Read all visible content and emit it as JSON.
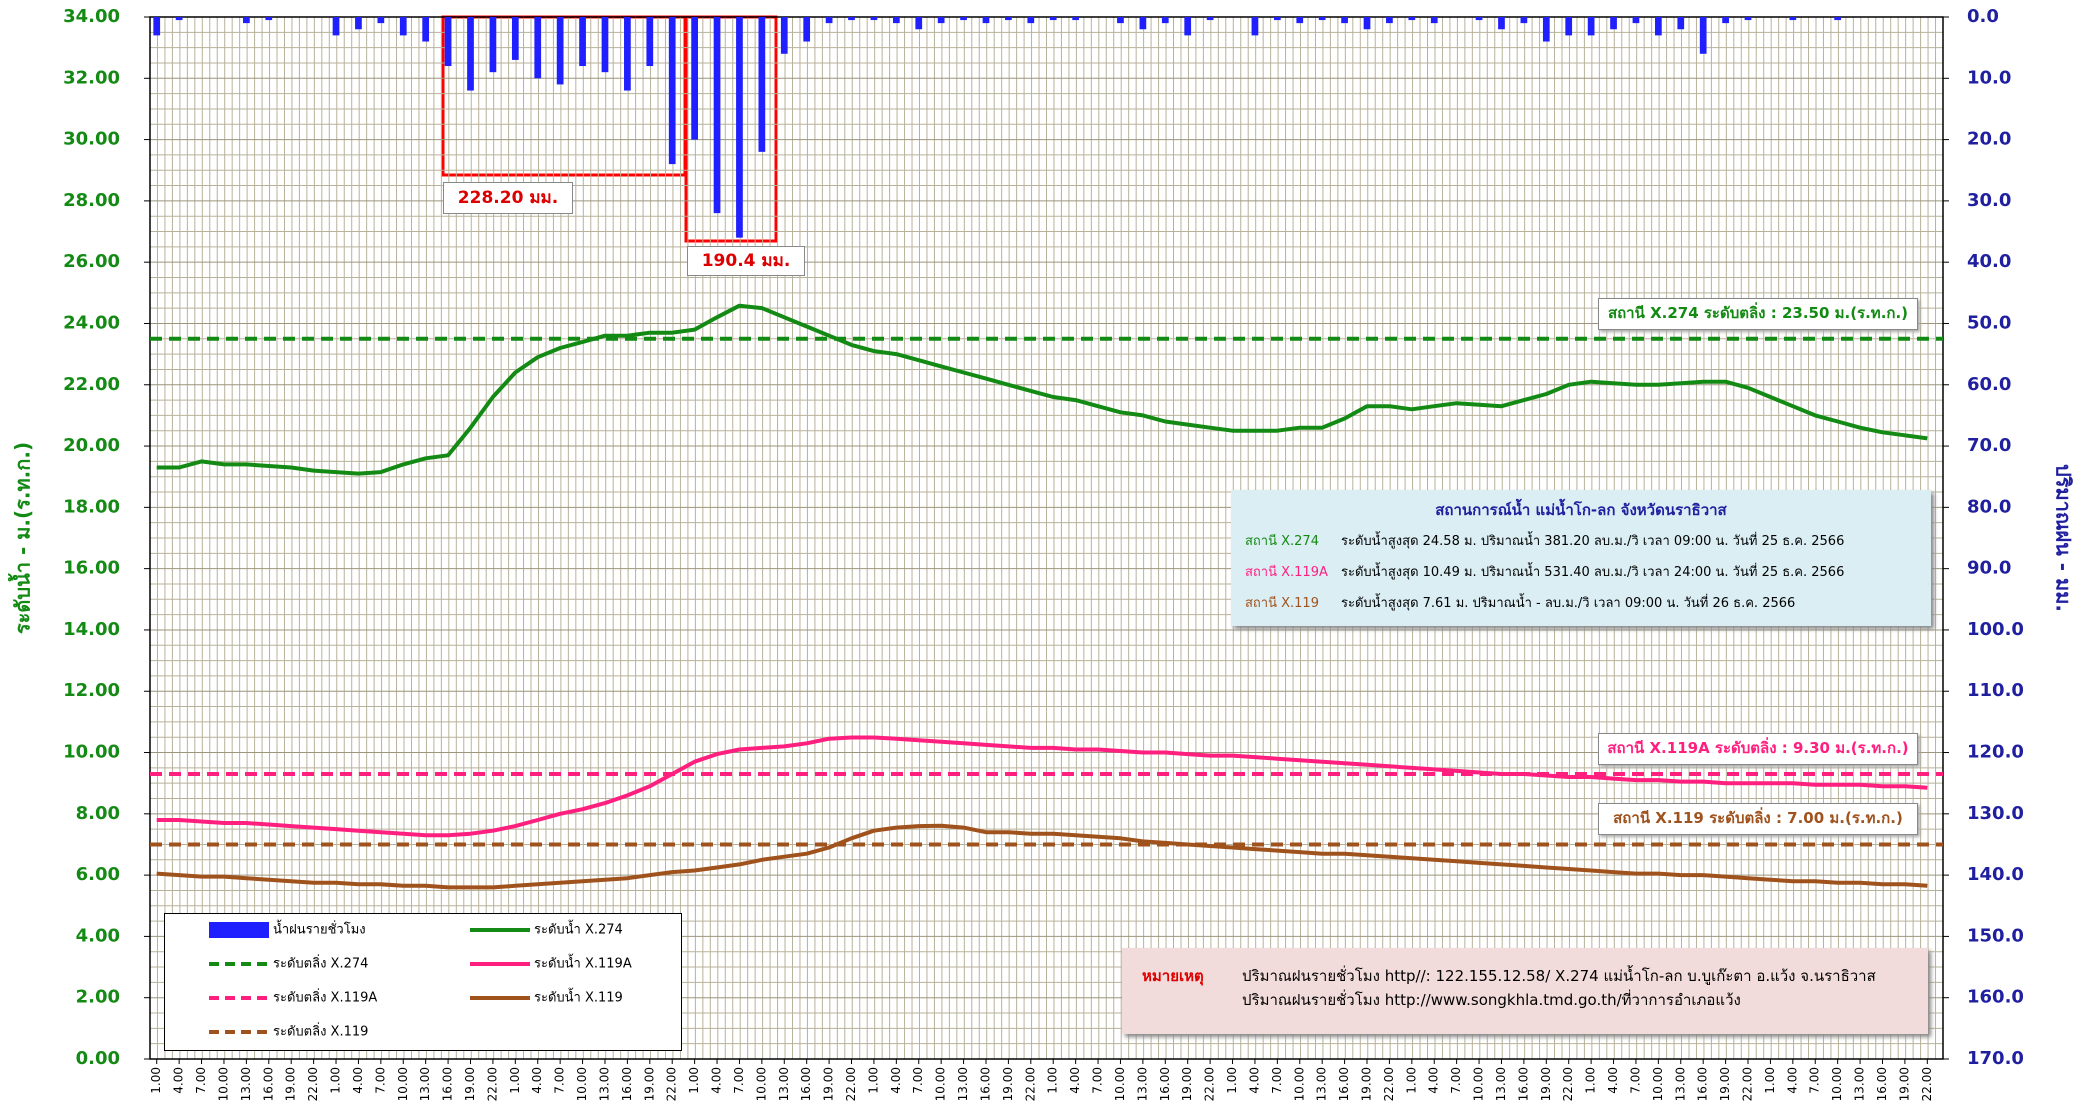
{
  "chart_data": {
    "type": "bar-line",
    "y_label": "ระดับน้ำ  -  ม.(ร.ท.ก.)",
    "y2_label": "ปริมาณฝน - มม.",
    "categories": [
      "1.00",
      "4.00",
      "7.00",
      "10.00",
      "13.00",
      "16.00",
      "19.00",
      "22.00",
      "1.00",
      "4.00",
      "7.00",
      "10.00",
      "13.00",
      "16.00",
      "19.00",
      "22.00",
      "1.00",
      "4.00",
      "7.00",
      "10.00",
      "13.00",
      "16.00",
      "19.00",
      "22.00",
      "1.00",
      "4.00",
      "7.00",
      "10.00",
      "13.00",
      "16.00",
      "19.00",
      "22.00",
      "1.00",
      "4.00",
      "7.00",
      "10.00",
      "13.00",
      "16.00",
      "19.00",
      "22.00",
      "1.00",
      "4.00",
      "7.00",
      "10.00",
      "13.00",
      "16.00",
      "19.00",
      "22.00",
      "1.00",
      "4.00",
      "7.00",
      "10.00",
      "13.00",
      "16.00",
      "19.00",
      "22.00",
      "1.00",
      "4.00",
      "7.00",
      "10.00",
      "13.00",
      "16.00",
      "19.00",
      "22.00",
      "1.00",
      "4.00",
      "7.00",
      "10.00",
      "13.00",
      "16.00",
      "19.00",
      "22.00",
      "1.00",
      "4.00",
      "7.00",
      "10.00",
      "13.00",
      "16.00",
      "19.00",
      "22.00"
    ],
    "series": [
      {
        "name": "น้ำฝนรายชั่วโมง",
        "type": "bar",
        "axis": "y2",
        "color": "#1f1fff",
        "values": [
          3,
          0.5,
          0,
          0,
          1,
          0.5,
          0,
          0,
          3,
          2,
          1,
          3,
          4,
          8,
          12,
          9,
          7,
          10,
          11,
          8,
          9,
          12,
          8,
          24,
          20,
          32,
          36,
          22,
          6,
          4,
          1,
          0.5,
          0.5,
          1,
          2,
          1,
          0.5,
          1,
          0.5,
          1,
          0.5,
          0.5,
          0,
          1,
          2,
          1,
          3,
          0.5,
          0,
          3,
          0.5,
          1,
          0.5,
          1,
          2,
          1,
          0.5,
          1,
          0,
          0.5,
          2,
          1,
          4,
          3,
          3,
          2,
          1,
          3,
          2,
          6,
          1,
          0.5,
          0,
          0.5,
          0,
          0.5,
          0,
          0,
          0,
          0
        ]
      },
      {
        "name": "ระดับน้ำ X.274",
        "type": "line",
        "color": "#138a13",
        "values": [
          19.3,
          19.3,
          19.5,
          19.4,
          19.4,
          19.35,
          19.3,
          19.2,
          19.15,
          19.1,
          19.15,
          19.4,
          19.6,
          19.7,
          20.6,
          21.6,
          22.4,
          22.9,
          23.2,
          23.4,
          23.6,
          23.6,
          23.7,
          23.7,
          23.8,
          24.2,
          24.58,
          24.5,
          24.2,
          23.9,
          23.6,
          23.3,
          23.1,
          23.0,
          22.8,
          22.6,
          22.4,
          22.2,
          22.0,
          21.8,
          21.6,
          21.5,
          21.3,
          21.1,
          21.0,
          20.8,
          20.7,
          20.6,
          20.5,
          20.5,
          20.5,
          20.6,
          20.6,
          20.9,
          21.3,
          21.3,
          21.2,
          21.3,
          21.4,
          21.35,
          21.3,
          21.5,
          21.7,
          22.0,
          22.1,
          22.05,
          22.0,
          22.0,
          22.05,
          22.1,
          22.1,
          21.9,
          21.6,
          21.3,
          21.0,
          20.8,
          20.6,
          20.45,
          20.35,
          20.25
        ]
      },
      {
        "name": "ระดับน้ำ X.119A",
        "type": "line",
        "color": "#ff1f7f",
        "values": [
          7.8,
          7.8,
          7.75,
          7.7,
          7.7,
          7.65,
          7.6,
          7.55,
          7.5,
          7.45,
          7.4,
          7.35,
          7.3,
          7.3,
          7.35,
          7.45,
          7.6,
          7.8,
          8.0,
          8.15,
          8.35,
          8.6,
          8.9,
          9.3,
          9.7,
          9.95,
          10.1,
          10.15,
          10.2,
          10.3,
          10.45,
          10.49,
          10.49,
          10.45,
          10.4,
          10.35,
          10.3,
          10.25,
          10.2,
          10.15,
          10.15,
          10.1,
          10.1,
          10.05,
          10.0,
          10.0,
          9.95,
          9.9,
          9.9,
          9.85,
          9.8,
          9.75,
          9.7,
          9.65,
          9.6,
          9.55,
          9.5,
          9.45,
          9.4,
          9.35,
          9.3,
          9.3,
          9.25,
          9.2,
          9.2,
          9.15,
          9.1,
          9.1,
          9.05,
          9.05,
          9.0,
          9.0,
          9.0,
          9.0,
          8.95,
          8.95,
          8.95,
          8.9,
          8.9,
          8.85
        ]
      },
      {
        "name": "ระดับน้ำ X.119",
        "type": "line",
        "color": "#a0521d",
        "values": [
          6.05,
          6.0,
          5.95,
          5.95,
          5.9,
          5.85,
          5.8,
          5.75,
          5.75,
          5.7,
          5.7,
          5.65,
          5.65,
          5.6,
          5.6,
          5.6,
          5.65,
          5.7,
          5.75,
          5.8,
          5.85,
          5.9,
          6.0,
          6.1,
          6.15,
          6.25,
          6.35,
          6.5,
          6.6,
          6.7,
          6.9,
          7.2,
          7.45,
          7.55,
          7.6,
          7.61,
          7.55,
          7.4,
          7.4,
          7.35,
          7.35,
          7.3,
          7.25,
          7.2,
          7.1,
          7.05,
          7.0,
          6.95,
          6.9,
          6.85,
          6.8,
          6.75,
          6.7,
          6.7,
          6.65,
          6.6,
          6.55,
          6.5,
          6.45,
          6.4,
          6.35,
          6.3,
          6.25,
          6.2,
          6.15,
          6.1,
          6.05,
          6.05,
          6.0,
          6.0,
          5.95,
          5.9,
          5.85,
          5.8,
          5.8,
          5.75,
          5.75,
          5.7,
          5.7,
          5.65
        ]
      }
    ],
    "thresholds": [
      {
        "name": "ระดับตลิ่ง X.274",
        "value": 23.5,
        "color": "#138a13",
        "label": "สถานี X.274 ระดับตลิ่ง : 23.50 ม.(ร.ท.ก.)"
      },
      {
        "name": "ระดับตลิ่ง X.119A",
        "value": 9.3,
        "color": "#ff1f7f",
        "label": "สถานี X.119A ระดับตลิ่ง : 9.30 ม.(ร.ท.ก.)"
      },
      {
        "name": "ระดับตลิ่ง X.119",
        "value": 7.0,
        "color": "#a0521d",
        "label": "สถานี X.119 ระดับตลิ่ง : 7.00 ม.(ร.ท.ก.)"
      }
    ],
    "ylim": [
      0,
      34
    ],
    "yticks": [
      {
        "value": 0,
        "label": "0.00"
      },
      {
        "value": 2,
        "label": "2.00"
      },
      {
        "value": 4,
        "label": "4.00"
      },
      {
        "value": 6,
        "label": "6.00"
      },
      {
        "value": 8,
        "label": "8.00"
      },
      {
        "value": 10,
        "label": "10.00"
      },
      {
        "value": 12,
        "label": "12.00"
      },
      {
        "value": 14,
        "label": "14.00"
      },
      {
        "value": 16,
        "label": "16.00"
      },
      {
        "value": 18,
        "label": "18.00"
      },
      {
        "value": 20,
        "label": "20.00"
      },
      {
        "value": 22,
        "label": "22.00"
      },
      {
        "value": 24,
        "label": "24.00"
      },
      {
        "value": 26,
        "label": "26.00"
      },
      {
        "value": 28,
        "label": "28.00"
      },
      {
        "value": 30,
        "label": "30.00"
      },
      {
        "value": 32,
        "label": "32.00"
      },
      {
        "value": 34,
        "label": "34.00"
      }
    ],
    "y2lim": [
      0,
      170
    ],
    "y2_reversed": true,
    "y2ticks": [
      {
        "value": 0,
        "label": "0.0"
      },
      {
        "value": 10,
        "label": "10.0"
      },
      {
        "value": 20,
        "label": "20.0"
      },
      {
        "value": 30,
        "label": "30.0"
      },
      {
        "value": 40,
        "label": "40.0"
      },
      {
        "value": 50,
        "label": "50.0"
      },
      {
        "value": 60,
        "label": "60.0"
      },
      {
        "value": 70,
        "label": "70.0"
      },
      {
        "value": 80,
        "label": "80.0"
      },
      {
        "value": 90,
        "label": "90.0"
      },
      {
        "value": 100,
        "label": "100.0"
      },
      {
        "value": 110,
        "label": "110.0"
      },
      {
        "value": 120,
        "label": "120.0"
      },
      {
        "value": 130,
        "label": "130.0"
      },
      {
        "value": 140,
        "label": "140.0"
      },
      {
        "value": 150,
        "label": "150.0"
      },
      {
        "value": 160,
        "label": "160.0"
      },
      {
        "value": 170,
        "label": "170.0"
      }
    ],
    "grid": true,
    "annotations": [
      "228.20 มม.",
      "190.4 มม."
    ],
    "info_box": {
      "title": "สถานการณ์น้ำ แม่น้ำโก-ลก  จังหวัดนราธิวาส",
      "rows": [
        {
          "station": "สถานี X.274",
          "color": "#138a13",
          "text": "ระดับน้ำสูงสุด 24.58 ม. ปริมาณน้ำ  381.20 ลบ.ม./วิ เวลา 09:00 น. วันที่ 25 ธ.ค. 2566"
        },
        {
          "station": "สถานี X.119A",
          "color": "#ff1f7f",
          "text": "ระดับน้ำสูงสุด 10.49 ม. ปริมาณน้ำ  531.40 ลบ.ม./วิ เวลา 24:00 น. วันที่ 25 ธ.ค. 2566"
        },
        {
          "station": "สถานี X.119",
          "color": "#a0521d",
          "text": "ระดับน้ำสูงสุด  7.61 ม. ปริมาณน้ำ  -  ลบ.ม./วิ เวลา 09:00 น. วันที่ 26 ธ.ค. 2566"
        }
      ]
    },
    "note": {
      "label": "หมายเหตุ",
      "lines": [
        "ปริมาณฝนรายชั่วโมง http//: 122.155.12.58/ X.274 แม่น้ำโก-ลก บ.บูเก๊ะตา อ.แว้ง จ.นราธิวาส",
        "ปริมาณฝนรายชั่วโมง http://www.songkhla.tmd.go.th/ที่วาการอำเภอแว้ง"
      ]
    }
  }
}
